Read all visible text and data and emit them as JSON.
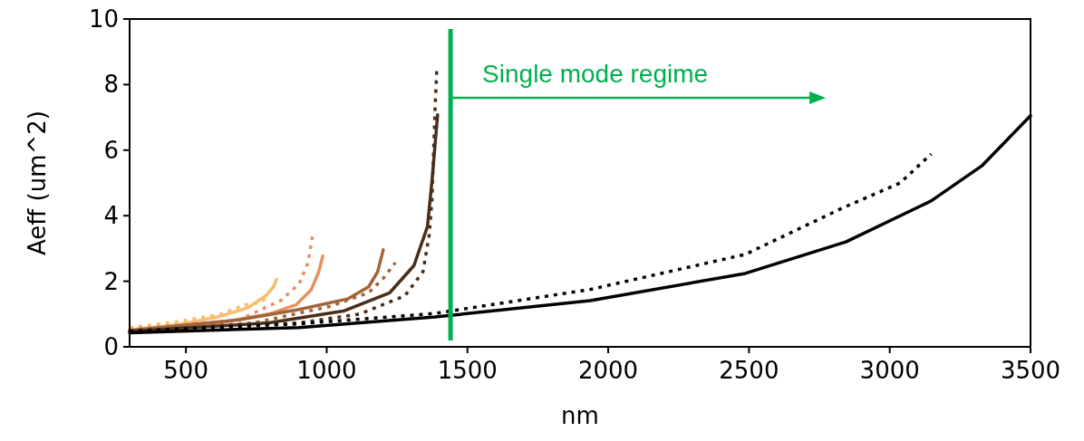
{
  "chart_data": {
    "type": "line",
    "xlabel": "nm",
    "ylabel": "Aeff (um^2)",
    "xlim": [
      300,
      3500
    ],
    "ylim": [
      0,
      10
    ],
    "xticks": [
      500,
      1000,
      1500,
      2000,
      2500,
      3000,
      3500
    ],
    "yticks": [
      0,
      2,
      4,
      6,
      8,
      10
    ],
    "grid": false,
    "series": [
      {
        "color": "#f9bd6e",
        "line_style": "solid",
        "x": [
          300,
          473,
          612,
          720,
          784,
          811,
          822
        ],
        "values": [
          0.52,
          0.68,
          0.91,
          1.19,
          1.56,
          1.83,
          2.06
        ]
      },
      {
        "color": "#f9bd6e",
        "line_style": "dotted",
        "x": [
          300,
          473,
          623,
          709,
          752,
          800
        ],
        "values": [
          0.59,
          0.77,
          1.0,
          1.28,
          1.33,
          1.51
        ]
      },
      {
        "color": "#e8915f",
        "line_style": "solid",
        "x": [
          300,
          580,
          795,
          891,
          945,
          972,
          986
        ],
        "values": [
          0.5,
          0.68,
          1.0,
          1.28,
          1.74,
          2.29,
          2.77
        ]
      },
      {
        "color": "#e8915f",
        "line_style": "dotted",
        "x": [
          300,
          688,
          838,
          902,
          934,
          950
        ],
        "values": [
          0.54,
          0.82,
          1.42,
          1.92,
          2.57,
          3.4
        ]
      },
      {
        "color": "#a0643a",
        "line_style": "solid",
        "x": [
          300,
          688,
          902,
          1074,
          1149,
          1181,
          1201
        ],
        "values": [
          0.5,
          0.82,
          1.14,
          1.46,
          1.83,
          2.29,
          2.96
        ]
      },
      {
        "color": "#a0643a",
        "line_style": "dotted",
        "x": [
          300,
          741,
          1010,
          1149,
          1203,
          1244
        ],
        "values": [
          0.47,
          0.73,
          1.23,
          1.65,
          2.11,
          2.57
        ]
      },
      {
        "color": "#4a2e1a",
        "line_style": "solid",
        "x": [
          300,
          795,
          1063,
          1224,
          1310,
          1358,
          1374,
          1394
        ],
        "values": [
          0.47,
          0.73,
          1.1,
          1.65,
          2.48,
          3.67,
          5.06,
          7.08
        ]
      },
      {
        "color": "#4a2e1a",
        "line_style": "dotted",
        "x": [
          300,
          902,
          1117,
          1278,
          1342,
          1364,
          1374,
          1385,
          1391
        ],
        "values": [
          0.45,
          0.73,
          1.0,
          1.56,
          2.29,
          3.4,
          4.5,
          7.27,
          8.46
        ]
      },
      {
        "color": "#000000",
        "line_style": "solid",
        "x": [
          300,
          902,
          1385,
          1936,
          2487,
          2844,
          3147,
          3327,
          3500
        ],
        "values": [
          0.43,
          0.59,
          0.91,
          1.41,
          2.24,
          3.2,
          4.45,
          5.52,
          7.05
        ]
      },
      {
        "color": "#000000",
        "line_style": "dotted",
        "x": [
          300,
          900,
          1385,
          1936,
          2487,
          2831,
          3037,
          3147
        ],
        "values": [
          0.48,
          0.7,
          1.02,
          1.75,
          2.82,
          4.23,
          5.0,
          5.88
        ]
      }
    ],
    "ref_lines": [
      {
        "axis": "x",
        "value": 1440,
        "color": "#00b050",
        "line_style": "solid"
      }
    ],
    "annotations": [
      {
        "text": "Single mode regime",
        "x": 1440,
        "y": 7.6
      }
    ]
  }
}
